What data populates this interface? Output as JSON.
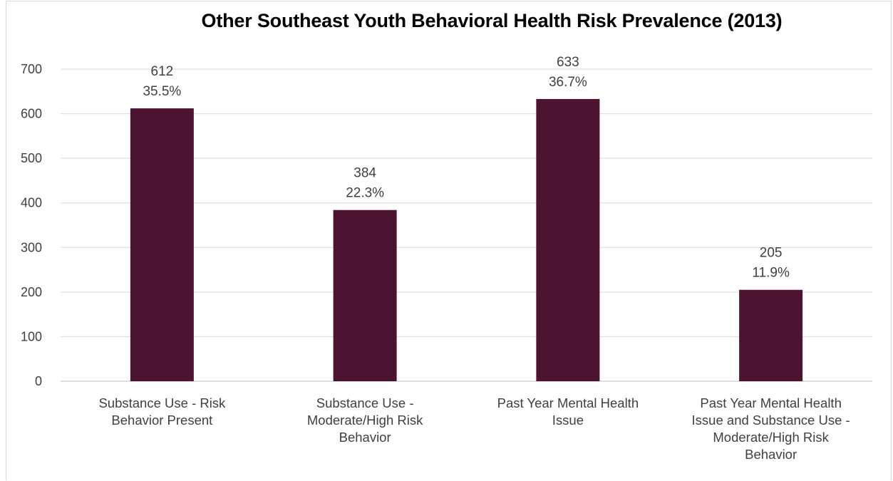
{
  "chart_data": {
    "type": "bar",
    "title": "Other Southeast Youth Behavioral Health Risk Prevalence (2013)",
    "xlabel": "",
    "ylabel": "",
    "categories": [
      [
        "Substance Use - Risk",
        "Behavior Present"
      ],
      [
        "Substance Use -",
        "Moderate/High Risk",
        "Behavior"
      ],
      [
        "Past Year Mental Health",
        "Issue"
      ],
      [
        "Past Year Mental Health",
        "Issue and Substance Use -",
        "Moderate/High Risk",
        "Behavior"
      ]
    ],
    "values": [
      612,
      384,
      633,
      205
    ],
    "value_labels": [
      "612",
      "384",
      "633",
      "205"
    ],
    "percent_labels": [
      "35.5%",
      "22.3%",
      "36.7%",
      "11.9%"
    ],
    "ylim": [
      0,
      700
    ],
    "yticks": [
      0,
      100,
      200,
      300,
      400,
      500,
      600,
      700
    ],
    "grid": true,
    "bar_color": "#4d1431",
    "gridline_color": "#d9d9d9",
    "text_color": "#404040"
  }
}
